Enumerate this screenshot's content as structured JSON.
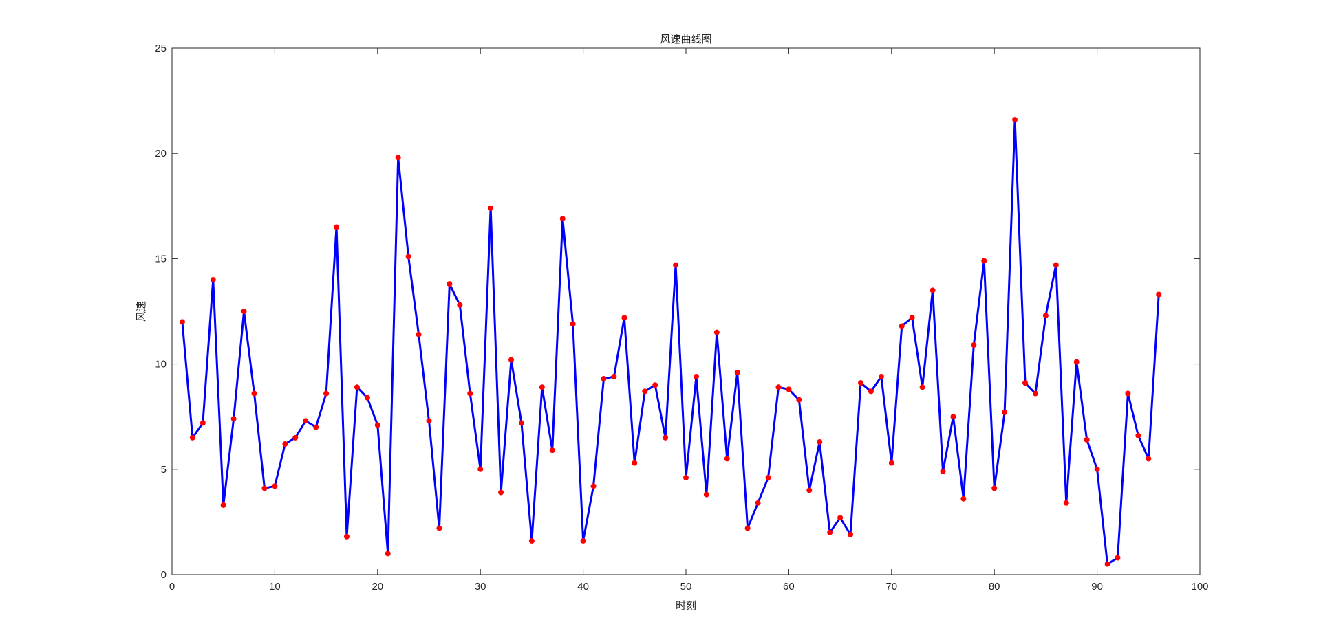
{
  "chart_data": {
    "type": "line",
    "title": "风速曲线图",
    "xlabel": "时刻",
    "ylabel": "风速",
    "xlim": [
      0,
      100
    ],
    "ylim": [
      0,
      25
    ],
    "x_ticks": [
      0,
      10,
      20,
      30,
      40,
      50,
      60,
      70,
      80,
      90,
      100
    ],
    "y_ticks": [
      0,
      5,
      10,
      15,
      20,
      25
    ],
    "x_tick_labels": [
      "0",
      "10",
      "20",
      "30",
      "40",
      "50",
      "60",
      "70",
      "80",
      "90",
      "100"
    ],
    "y_tick_labels": [
      "0",
      "5",
      "10",
      "15",
      "20",
      "25"
    ],
    "grid": false,
    "line_color": "#0000ff",
    "marker_color": "#ff0000",
    "marker": "filled-circle",
    "series": [
      {
        "x": [
          1,
          2,
          3,
          4,
          5,
          6,
          7,
          8,
          9,
          10,
          11,
          12,
          13,
          14,
          15,
          16,
          17,
          18,
          19,
          20,
          21,
          22,
          23,
          24,
          25,
          26,
          27,
          28,
          29,
          30,
          31,
          32,
          33,
          34,
          35,
          36,
          37,
          38,
          39,
          40,
          41,
          42,
          43,
          44,
          45,
          46,
          47,
          48,
          49,
          50,
          51,
          52,
          53,
          54,
          55,
          56,
          57,
          58,
          59,
          60,
          61,
          62,
          63,
          64,
          65,
          66,
          67,
          68,
          69,
          70,
          71,
          72,
          73,
          74,
          75,
          76,
          77,
          78,
          79,
          80,
          81,
          82,
          83,
          84,
          85,
          86,
          87,
          88,
          89,
          90,
          91,
          92,
          93,
          94,
          95,
          96
        ],
        "values": [
          12.0,
          6.5,
          7.2,
          14.0,
          3.3,
          7.4,
          12.5,
          8.6,
          4.1,
          4.2,
          6.2,
          6.5,
          7.3,
          7.0,
          8.6,
          16.5,
          1.8,
          8.9,
          8.4,
          7.1,
          1.0,
          19.8,
          15.1,
          11.4,
          7.3,
          2.2,
          13.8,
          12.8,
          8.6,
          5.0,
          17.4,
          3.9,
          10.2,
          7.2,
          1.6,
          8.9,
          5.9,
          16.9,
          11.9,
          1.6,
          4.2,
          9.3,
          9.4,
          12.2,
          5.3,
          8.7,
          9.0,
          6.5,
          14.7,
          4.6,
          9.4,
          3.8,
          11.5,
          5.5,
          9.6,
          2.2,
          3.4,
          4.6,
          8.9,
          8.8,
          8.3,
          4.0,
          6.3,
          2.0,
          2.7,
          1.9,
          9.1,
          8.7,
          9.4,
          5.3,
          11.8,
          12.2,
          8.9,
          13.5,
          4.9,
          7.5,
          3.6,
          10.9,
          14.9,
          4.1,
          7.7,
          21.6,
          9.1,
          8.6,
          12.3,
          14.7,
          3.4,
          10.1,
          6.4,
          5.0,
          0.5,
          0.8,
          8.6,
          6.6,
          5.5,
          13.3
        ]
      }
    ]
  }
}
